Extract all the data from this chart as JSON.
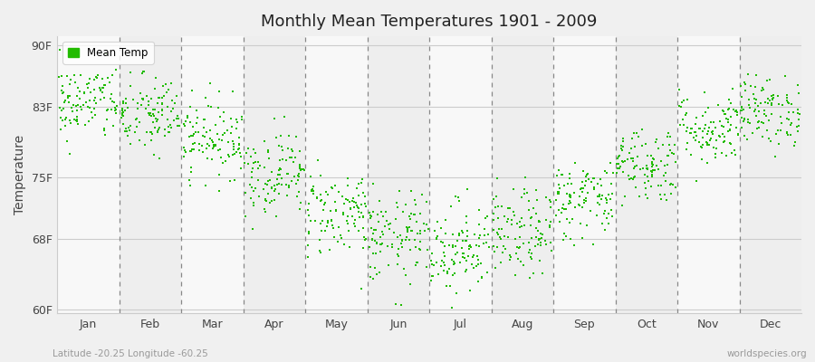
{
  "title": "Monthly Mean Temperatures 1901 - 2009",
  "ylabel": "Temperature",
  "ytick_labels": [
    "60F",
    "68F",
    "75F",
    "83F",
    "90F"
  ],
  "ytick_values": [
    60,
    68,
    75,
    83,
    90
  ],
  "ylim": [
    59.5,
    91
  ],
  "xlim": [
    0,
    12
  ],
  "months": [
    "Jan",
    "Feb",
    "Mar",
    "Apr",
    "May",
    "Jun",
    "Jul",
    "Aug",
    "Sep",
    "Oct",
    "Nov",
    "Dec"
  ],
  "dot_color": "#22bb00",
  "dot_size": 3,
  "background_color": "#f0f0f0",
  "plot_bg_light": "#eeeeee",
  "plot_bg_white": "#f8f8f8",
  "legend_label": "Mean Temp",
  "subtitle_left": "Latitude -20.25 Longitude -60.25",
  "subtitle_right": "worldspecies.org",
  "mean_F": [
    83.5,
    82.0,
    79.5,
    75.5,
    71.0,
    68.0,
    67.0,
    68.5,
    72.5,
    76.5,
    80.5,
    82.5
  ],
  "std_F": [
    2.2,
    2.3,
    2.2,
    2.4,
    2.5,
    2.6,
    2.7,
    2.5,
    2.3,
    2.2,
    2.1,
    2.0
  ],
  "n_years": 109,
  "seed": 42
}
